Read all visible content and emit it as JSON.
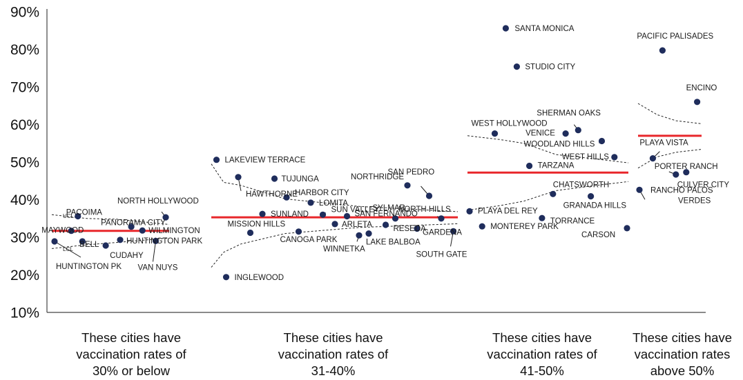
{
  "chart_data": {
    "type": "scatter",
    "title": "",
    "xlabel": "",
    "ylabel": "",
    "ylim": [
      10,
      90
    ],
    "yticks": [
      "10%",
      "20%",
      "30%",
      "40%",
      "50%",
      "60%",
      "70%",
      "80%",
      "90%"
    ],
    "grid": false,
    "legend": "none",
    "colors": {
      "point": "#1f2d5c",
      "center_line": "#e8262a",
      "limits": "#222222",
      "axis": "#444444"
    },
    "control_labels": {
      "ucl": "UCL",
      "lcl": "LCL"
    },
    "groups": [
      {
        "label": "These cities have vaccination rates of 30% or below",
        "center": 31.7,
        "ucl": [
          [
            0,
            36.0
          ],
          [
            0.3,
            35.0
          ],
          [
            0.55,
            34.8
          ],
          [
            1,
            33.4
          ]
        ],
        "lcl": [
          [
            0,
            27.0
          ],
          [
            0.3,
            28.0
          ],
          [
            0.55,
            28.6
          ],
          [
            1,
            29.8
          ]
        ],
        "points": [
          {
            "name": "PACOIMA",
            "y": 35.6,
            "pos": 0.21
          },
          {
            "name": "PANORAMA CITY",
            "y": 32.8,
            "pos": 0.69
          },
          {
            "name": "NORTH HOLLYWOOD",
            "y": 35.3,
            "pos": 1.0
          },
          {
            "name": "MAYWOOD",
            "y": 31.7,
            "pos": 0.15
          },
          {
            "name": "WILMINGTON",
            "y": 31.8,
            "pos": 0.79
          },
          {
            "name": "HUNTINGTON PARK",
            "y": 29.3,
            "pos": 0.59
          },
          {
            "name": "BELL",
            "y": 28.9,
            "pos": 0.25
          },
          {
            "name": "CUDAHY",
            "y": 27.8,
            "pos": 0.46
          },
          {
            "name": "HUNTINGTON PK",
            "y": 28.9,
            "pos": 0.0
          },
          {
            "name": "VAN NUYS",
            "y": 29.0,
            "pos": 0.91
          }
        ]
      },
      {
        "label": "These cities have vaccination rates of 31-40%",
        "center": 35.3,
        "ucl": [
          [
            0,
            49.5
          ],
          [
            0.05,
            44.6
          ],
          [
            0.12,
            43.8
          ],
          [
            0.3,
            40.2
          ],
          [
            0.6,
            38.2
          ],
          [
            1,
            36.8
          ]
        ],
        "lcl": [
          [
            0,
            22.0
          ],
          [
            0.05,
            26.0
          ],
          [
            0.12,
            28.2
          ],
          [
            0.3,
            31.0
          ],
          [
            0.6,
            32.6
          ],
          [
            1,
            33.6
          ]
        ],
        "points": [
          {
            "name": "LAKEVIEW TERRACE",
            "y": 50.6,
            "pos": 0.01
          },
          {
            "name": "HAWTHORNE",
            "y": 46.0,
            "pos": 0.1
          },
          {
            "name": "TUJUNGA",
            "y": 45.6,
            "pos": 0.25
          },
          {
            "name": "HARBOR CITY",
            "y": 40.6,
            "pos": 0.3
          },
          {
            "name": "LOMITA",
            "y": 39.2,
            "pos": 0.4
          },
          {
            "name": "SUNLAND",
            "y": 36.2,
            "pos": 0.2
          },
          {
            "name": "SUN VALLEY",
            "y": 36.0,
            "pos": 0.45
          },
          {
            "name": "SAN FERNANDO",
            "y": 35.6,
            "pos": 0.55
          },
          {
            "name": "NORTHRIDGE",
            "y": 43.8,
            "pos": 0.8
          },
          {
            "name": "SAN PEDRO",
            "y": 41.0,
            "pos": 0.89
          },
          {
            "name": "SYLMAR",
            "y": 35.0,
            "pos": 0.75
          },
          {
            "name": "NORTH HILLS",
            "y": 35.0,
            "pos": 0.94
          },
          {
            "name": "MISSION HILLS",
            "y": 31.2,
            "pos": 0.15
          },
          {
            "name": "CANOGA PARK",
            "y": 31.5,
            "pos": 0.35
          },
          {
            "name": "ARLETA",
            "y": 33.5,
            "pos": 0.5
          },
          {
            "name": "RESEDA",
            "y": 33.3,
            "pos": 0.71
          },
          {
            "name": "WINNETKA",
            "y": 30.5,
            "pos": 0.6
          },
          {
            "name": "LAKE BALBOA",
            "y": 31.0,
            "pos": 0.64
          },
          {
            "name": "GARDENA",
            "y": 32.3,
            "pos": 0.84
          },
          {
            "name": "SOUTH GATE",
            "y": 31.6,
            "pos": 0.99
          },
          {
            "name": "INGLEWOOD",
            "y": 19.4,
            "pos": 0.05
          }
        ]
      },
      {
        "label": "These cities have vaccination rates of 41-50%",
        "center": 47.2,
        "ucl": [
          [
            0,
            57.0
          ],
          [
            0.2,
            56.0
          ],
          [
            0.35,
            55.0
          ],
          [
            0.55,
            52.0
          ],
          [
            0.8,
            50.8
          ],
          [
            1,
            49.8
          ]
        ],
        "lcl": [
          [
            0,
            37.2
          ],
          [
            0.2,
            38.4
          ],
          [
            0.35,
            39.6
          ],
          [
            0.55,
            42.4
          ],
          [
            0.8,
            43.8
          ],
          [
            1,
            44.8
          ]
        ],
        "points": [
          {
            "name": "SANTA MONICA",
            "y": 85.6,
            "pos": 0.23
          },
          {
            "name": "STUDIO CITY",
            "y": 75.4,
            "pos": 0.3
          },
          {
            "name": "WEST HOLLYWOOD",
            "y": 57.6,
            "pos": 0.16
          },
          {
            "name": "SHERMAN OAKS",
            "y": 58.5,
            "pos": 0.69
          },
          {
            "name": "VENICE",
            "y": 57.6,
            "pos": 0.61
          },
          {
            "name": "WOODLAND HILLS",
            "y": 55.6,
            "pos": 0.84
          },
          {
            "name": "WEST HILLS",
            "y": 51.3,
            "pos": 0.92
          },
          {
            "name": "TARZANA",
            "y": 49.0,
            "pos": 0.38
          },
          {
            "name": "CHATSWORTH",
            "y": 41.5,
            "pos": 0.53
          },
          {
            "name": "GRANADA HILLS",
            "y": 40.9,
            "pos": 0.77
          },
          {
            "name": "PLAYA DEL REY",
            "y": 36.9,
            "pos": 0.0
          },
          {
            "name": "TORRANCE",
            "y": 35.1,
            "pos": 0.46
          },
          {
            "name": "MONTEREY PARK",
            "y": 32.9,
            "pos": 0.08
          },
          {
            "name": "CARSON",
            "y": 32.4,
            "pos": 1.0
          }
        ]
      },
      {
        "label": "These cities have vaccination rates above 50%",
        "center": 57.0,
        "ucl": [
          [
            0,
            65.6
          ],
          [
            0.3,
            62.6
          ],
          [
            0.6,
            61.0
          ],
          [
            1,
            60.2
          ]
        ],
        "lcl": [
          [
            0,
            48.4
          ],
          [
            0.3,
            51.4
          ],
          [
            0.6,
            52.6
          ],
          [
            1,
            53.4
          ]
        ],
        "points": [
          {
            "name": "PACIFIC PALISADES",
            "y": 79.7,
            "pos": 0.38
          },
          {
            "name": "ENCINO",
            "y": 66.0,
            "pos": 0.95
          },
          {
            "name": "PLAYA VISTA",
            "y": 51.0,
            "pos": 0.22
          },
          {
            "name": "PORTER RANCH",
            "y": 46.7,
            "pos": 0.6
          },
          {
            "name": "CULVER CITY",
            "y": 47.3,
            "pos": 0.77
          },
          {
            "name": "RANCHO PALOS VERDES",
            "y": 42.6,
            "pos": 0.0
          }
        ]
      }
    ]
  }
}
